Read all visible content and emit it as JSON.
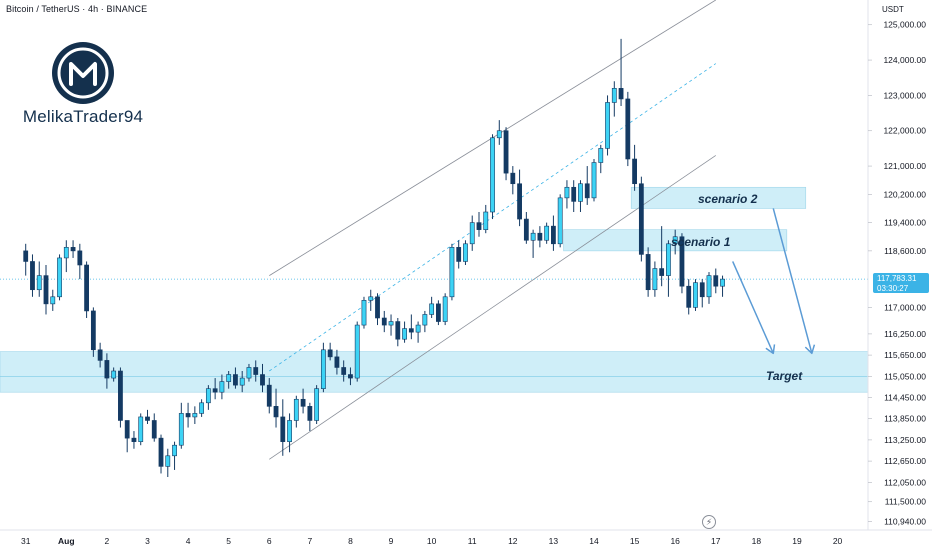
{
  "header": {
    "title": "Bitcoin / TetherUS · 4h · BINANCE",
    "currency": "USDT"
  },
  "brand": {
    "name": "MelikaTrader94"
  },
  "current_price": {
    "value": "117,783.31",
    "countdown": "03:30:27",
    "price": 117783
  },
  "colors": {
    "up": "#3dd3f5",
    "down": "#143a63",
    "zone": "#bfe8f5",
    "channel": "#8a8f99",
    "midline": "#3bb3e6",
    "arrow": "#5b9bd5",
    "dark_text": "#14304d"
  },
  "annotations": {
    "scenario2": "scenario 2",
    "scenario1": "scenario 1",
    "target": "Target"
  },
  "chart_data": {
    "type": "candlestick",
    "title": "Bitcoin / TetherUS · 4h · BINANCE",
    "xlabel": "",
    "ylabel": "",
    "ylim": [
      110700,
      125700
    ],
    "y_ticks": [
      {
        "v": 125000,
        "label": "125,000.00"
      },
      {
        "v": 124000,
        "label": "124,000.00"
      },
      {
        "v": 123000,
        "label": "123,000.00"
      },
      {
        "v": 122000,
        "label": "122,000.00"
      },
      {
        "v": 121000,
        "label": "121,000.00"
      },
      {
        "v": 120200,
        "label": "120,200.00"
      },
      {
        "v": 119400,
        "label": "119,400.00"
      },
      {
        "v": 118600,
        "label": "118,600.00"
      },
      {
        "v": 117000,
        "label": "117,000.00"
      },
      {
        "v": 116250,
        "label": "116,250.00"
      },
      {
        "v": 115650,
        "label": "115,650.00"
      },
      {
        "v": 115050,
        "label": "115,050.00"
      },
      {
        "v": 114450,
        "label": "114,450.00"
      },
      {
        "v": 113850,
        "label": "113,850.00"
      },
      {
        "v": 113250,
        "label": "113,250.00"
      },
      {
        "v": 112650,
        "label": "112,650.00"
      },
      {
        "v": 112050,
        "label": "112,050.00"
      },
      {
        "v": 111500,
        "label": "111,500.00"
      },
      {
        "v": 110940,
        "label": "110,940.00"
      }
    ],
    "x_ticks": [
      {
        "x": 0,
        "label": "31"
      },
      {
        "x": 6,
        "label": "Aug"
      },
      {
        "x": 12,
        "label": "2"
      },
      {
        "x": 18,
        "label": "3"
      },
      {
        "x": 24,
        "label": "4"
      },
      {
        "x": 30,
        "label": "5"
      },
      {
        "x": 36,
        "label": "6"
      },
      {
        "x": 42,
        "label": "7"
      },
      {
        "x": 48,
        "label": "8"
      },
      {
        "x": 54,
        "label": "9"
      },
      {
        "x": 60,
        "label": "10"
      },
      {
        "x": 66,
        "label": "11"
      },
      {
        "x": 72,
        "label": "12"
      },
      {
        "x": 78,
        "label": "13"
      },
      {
        "x": 84,
        "label": "14"
      },
      {
        "x": 90,
        "label": "15"
      },
      {
        "x": 96,
        "label": "16"
      },
      {
        "x": 102,
        "label": "17"
      },
      {
        "x": 108,
        "label": "18"
      },
      {
        "x": 114,
        "label": "19"
      },
      {
        "x": 120,
        "label": "20"
      }
    ],
    "x_range": [
      -3.8,
      124.5
    ],
    "candles": [
      [
        118600,
        118800,
        117900,
        118300
      ],
      [
        118300,
        118500,
        117300,
        117500
      ],
      [
        117500,
        118300,
        117300,
        117900
      ],
      [
        117900,
        118200,
        116800,
        117100
      ],
      [
        117100,
        117500,
        116900,
        117300
      ],
      [
        117300,
        118500,
        117200,
        118400
      ],
      [
        118400,
        118900,
        118000,
        118700
      ],
      [
        118700,
        118900,
        118400,
        118600
      ],
      [
        118600,
        118800,
        117800,
        118200
      ],
      [
        118200,
        118300,
        116700,
        116900
      ],
      [
        116900,
        117000,
        115600,
        115800
      ],
      [
        115800,
        116000,
        115300,
        115500
      ],
      [
        115500,
        115700,
        114700,
        115000
      ],
      [
        115000,
        115300,
        114900,
        115200
      ],
      [
        115200,
        115300,
        113600,
        113800
      ],
      [
        113800,
        113800,
        112900,
        113300
      ],
      [
        113300,
        113500,
        113000,
        113200
      ],
      [
        113200,
        114000,
        113100,
        113900
      ],
      [
        113900,
        114100,
        113700,
        113800
      ],
      [
        113800,
        114000,
        113200,
        113300
      ],
      [
        113300,
        113400,
        112300,
        112500
      ],
      [
        112500,
        113000,
        112200,
        112800
      ],
      [
        112800,
        113200,
        112400,
        113100
      ],
      [
        113100,
        114300,
        113000,
        114000
      ],
      [
        114000,
        114300,
        113600,
        113900
      ],
      [
        113900,
        114200,
        113700,
        114000
      ],
      [
        114000,
        114400,
        113900,
        114300
      ],
      [
        114300,
        114800,
        114100,
        114700
      ],
      [
        114700,
        115000,
        114400,
        114600
      ],
      [
        114600,
        115100,
        114400,
        114900
      ],
      [
        114900,
        115200,
        114700,
        115100
      ],
      [
        115100,
        115300,
        114700,
        114800
      ],
      [
        114800,
        115200,
        114600,
        115000
      ],
      [
        115000,
        115400,
        114900,
        115300
      ],
      [
        115300,
        115500,
        114900,
        115100
      ],
      [
        115100,
        115400,
        114600,
        114800
      ],
      [
        114800,
        115000,
        114000,
        114200
      ],
      [
        114200,
        114700,
        113600,
        113900
      ],
      [
        113900,
        114400,
        112800,
        113200
      ],
      [
        113200,
        114000,
        112900,
        113800
      ],
      [
        113800,
        114500,
        113600,
        114400
      ],
      [
        114400,
        114700,
        114000,
        114200
      ],
      [
        114200,
        114300,
        113500,
        113800
      ],
      [
        113800,
        114800,
        113700,
        114700
      ],
      [
        114700,
        116000,
        114600,
        115800
      ],
      [
        115800,
        116000,
        115500,
        115600
      ],
      [
        115600,
        115800,
        115100,
        115300
      ],
      [
        115300,
        115500,
        114900,
        115100
      ],
      [
        115100,
        115300,
        114800,
        115000
      ],
      [
        115000,
        116600,
        114900,
        116500
      ],
      [
        116500,
        117300,
        116400,
        117200
      ],
      [
        117200,
        117500,
        116900,
        117300
      ],
      [
        117300,
        117400,
        116500,
        116700
      ],
      [
        116700,
        116900,
        116300,
        116500
      ],
      [
        116500,
        116800,
        116200,
        116600
      ],
      [
        116600,
        116700,
        115900,
        116100
      ],
      [
        116100,
        116600,
        116000,
        116400
      ],
      [
        116400,
        116800,
        116100,
        116300
      ],
      [
        116300,
        116600,
        116000,
        116500
      ],
      [
        116500,
        116900,
        116300,
        116800
      ],
      [
        116800,
        117300,
        116700,
        117100
      ],
      [
        117100,
        117200,
        116500,
        116600
      ],
      [
        116600,
        117400,
        116500,
        117300
      ],
      [
        117300,
        118800,
        117200,
        118700
      ],
      [
        118700,
        118900,
        118100,
        118300
      ],
      [
        118300,
        118900,
        118200,
        118800
      ],
      [
        118800,
        119600,
        118600,
        119400
      ],
      [
        119400,
        119700,
        119000,
        119200
      ],
      [
        119200,
        119900,
        119100,
        119700
      ],
      [
        119700,
        121900,
        119500,
        121800
      ],
      [
        121800,
        122300,
        121600,
        122000
      ],
      [
        122000,
        122100,
        120600,
        120800
      ],
      [
        120800,
        121000,
        120200,
        120500
      ],
      [
        120500,
        120900,
        119300,
        119500
      ],
      [
        119500,
        119700,
        118800,
        118900
      ],
      [
        118900,
        119200,
        118400,
        119100
      ],
      [
        119100,
        119300,
        118700,
        118900
      ],
      [
        118900,
        119400,
        118800,
        119300
      ],
      [
        119300,
        119600,
        118600,
        118800
      ],
      [
        118800,
        120200,
        118700,
        120100
      ],
      [
        120100,
        120600,
        119800,
        120400
      ],
      [
        120400,
        120600,
        119700,
        120000
      ],
      [
        120000,
        120600,
        119700,
        120500
      ],
      [
        120500,
        121000,
        119900,
        120100
      ],
      [
        120100,
        121200,
        120000,
        121100
      ],
      [
        121100,
        121600,
        120800,
        121500
      ],
      [
        121500,
        123000,
        121300,
        122800
      ],
      [
        122800,
        123400,
        122400,
        123200
      ],
      [
        123200,
        124600,
        122700,
        122900
      ],
      [
        122900,
        123100,
        121000,
        121200
      ],
      [
        121200,
        121600,
        120300,
        120500
      ],
      [
        120500,
        120700,
        118300,
        118500
      ],
      [
        118500,
        118700,
        117300,
        117500
      ],
      [
        117500,
        118300,
        117300,
        118100
      ],
      [
        118100,
        119300,
        117600,
        117900
      ],
      [
        117900,
        118900,
        117300,
        118800
      ],
      [
        118800,
        119200,
        118500,
        119000
      ],
      [
        119000,
        119100,
        117400,
        117600
      ],
      [
        117600,
        117800,
        116800,
        117000
      ],
      [
        117000,
        117800,
        116900,
        117700
      ],
      [
        117700,
        117800,
        117000,
        117300
      ],
      [
        117300,
        118000,
        117100,
        117900
      ],
      [
        117900,
        118100,
        117400,
        117600
      ],
      [
        117600,
        117900,
        117300,
        117800
      ]
    ],
    "trendlines": [
      {
        "name": "channel-upper",
        "from": [
          36,
          117900
        ],
        "to": [
          102,
          125700
        ]
      },
      {
        "name": "channel-mid",
        "from": [
          36,
          115200
        ],
        "to": [
          102,
          123900
        ]
      },
      {
        "name": "channel-lower",
        "from": [
          36,
          112700
        ],
        "to": [
          102,
          121300
        ]
      }
    ],
    "zones": [
      {
        "name": "target-zone",
        "x0": -3.8,
        "x1": 124.5,
        "y_top": 115750,
        "y_bot": 114600,
        "label_key": "target"
      },
      {
        "name": "scenario2-zone",
        "x0": 89.5,
        "x1": 115.3,
        "y_top": 120400,
        "y_bot": 119800,
        "label_key": "scenario2"
      },
      {
        "name": "scenario1-zone",
        "x0": 79.5,
        "x1": 112.5,
        "y_top": 119200,
        "y_bot": 118600,
        "label_key": "scenario1"
      }
    ],
    "arrows": [
      {
        "name": "scenario1-arrow",
        "from": [
          104.5,
          118300
        ],
        "to": [
          110.5,
          115700
        ]
      },
      {
        "name": "scenario2-arrow",
        "from": [
          110.5,
          119800
        ],
        "to": [
          116.2,
          115700
        ]
      }
    ]
  }
}
